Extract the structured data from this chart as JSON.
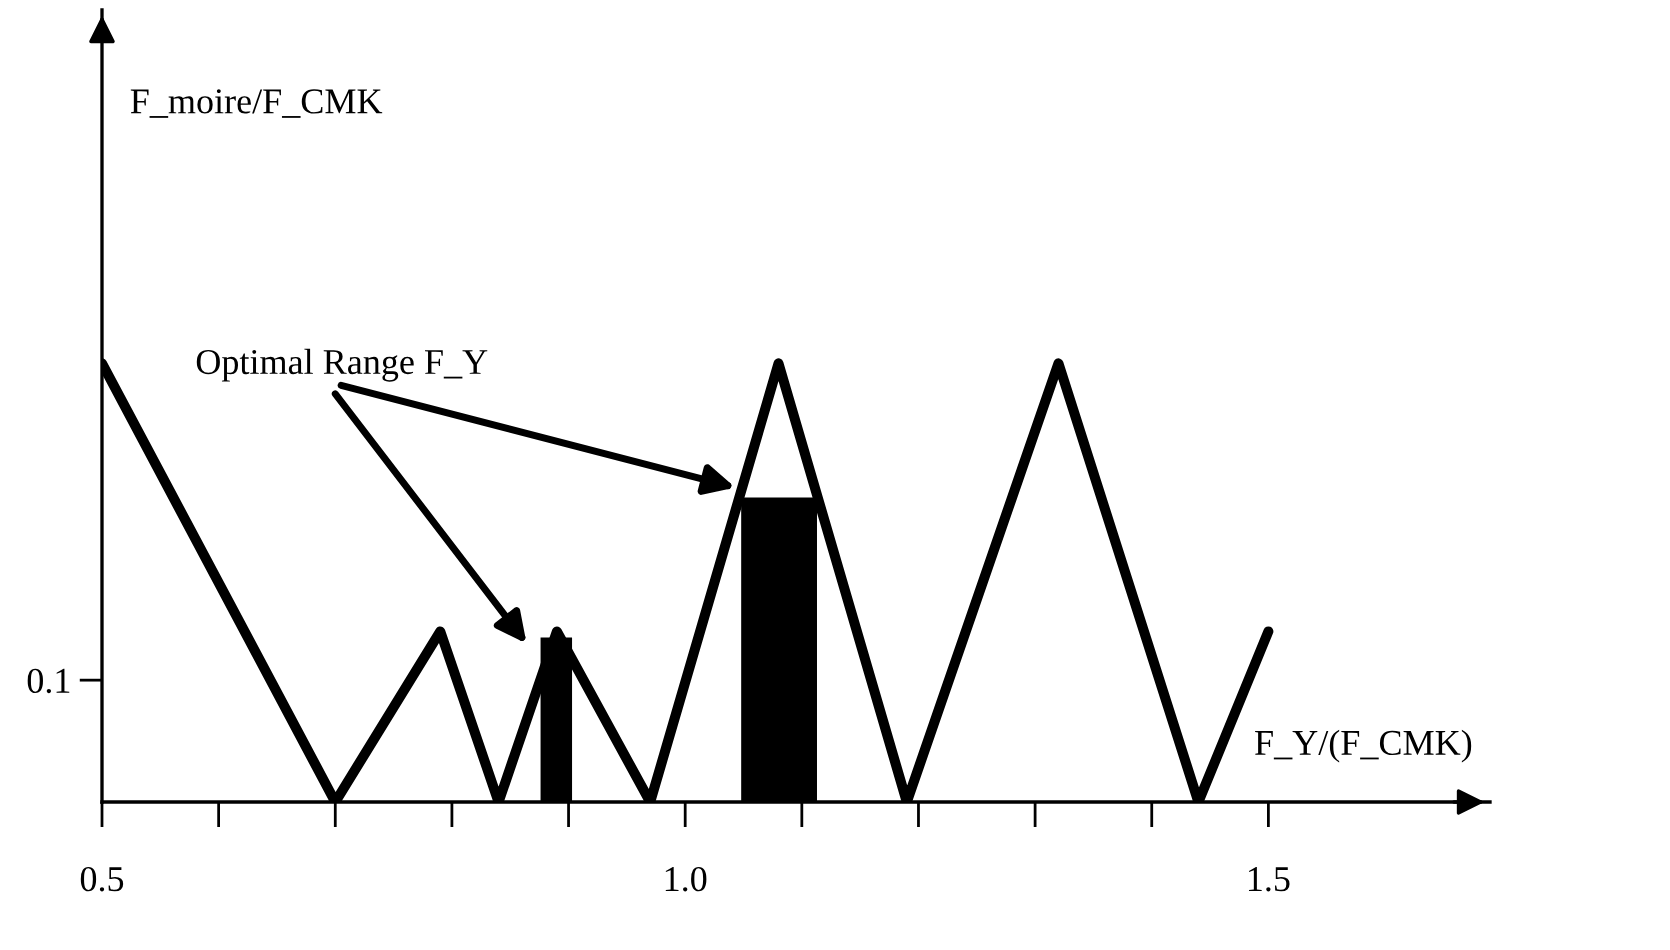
{
  "chart_data": {
    "type": "line",
    "ylabel": "F_moire/F_CMK",
    "xlabel": "F_Y/(F_CMK)",
    "annotations": [
      "Optimal Range F_Y"
    ],
    "xlim": [
      0.5,
      1.69
    ],
    "ylim": [
      0,
      0.65
    ],
    "yticks": [
      0.1
    ],
    "xticks": [
      {
        "value": 0.5,
        "label": "0.5"
      },
      {
        "value": 0.6,
        "label": null
      },
      {
        "value": 0.7,
        "label": null
      },
      {
        "value": 0.8,
        "label": null
      },
      {
        "value": 0.9,
        "label": null
      },
      {
        "value": 1.0,
        "label": "1.0"
      },
      {
        "value": 1.1,
        "label": null
      },
      {
        "value": 1.2,
        "label": null
      },
      {
        "value": 1.3,
        "label": null
      },
      {
        "value": 1.4,
        "label": null
      },
      {
        "value": 1.5,
        "label": "1.5"
      }
    ],
    "grid": false,
    "series": [
      {
        "type": "area",
        "color": "#000000",
        "x": [
          0.876,
          0.903
        ],
        "values": [
          0.135,
          0.135
        ]
      },
      {
        "type": "area",
        "color": "#000000",
        "x": [
          1.048,
          1.113
        ],
        "values": [
          0.25,
          0.25
        ]
      },
      {
        "color": "#000000",
        "x": [
          0.5,
          0.7,
          0.79,
          0.84,
          0.89,
          0.97,
          1.08,
          1.19,
          1.32,
          1.44,
          1.5
        ],
        "values": [
          0.36,
          0,
          0.14,
          0,
          0.14,
          0,
          0.36,
          0,
          0.36,
          0,
          0.14
        ]
      }
    ]
  }
}
